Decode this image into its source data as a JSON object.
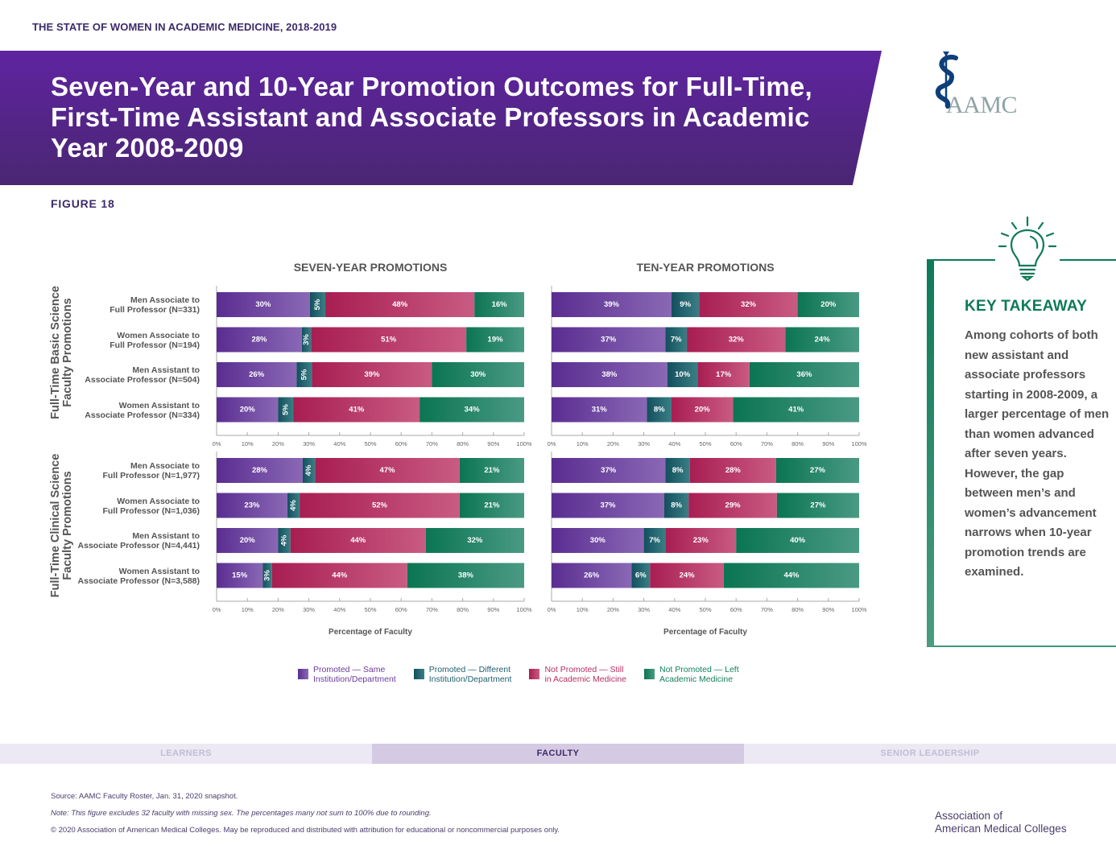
{
  "header": {
    "report_title": "THE STATE OF WOMEN IN ACADEMIC MEDICINE, 2018-2019",
    "banner_title": "Seven-Year and 10-Year Promotion Outcomes for Full-Time, First-Time Assistant and Associate Professors in Academic Year 2008-2009",
    "figure_label": "FIGURE 18",
    "logo_text": "AAMC"
  },
  "colors": {
    "promoted_same": "#6b3a9e",
    "promoted_different": "#1e5f6e",
    "not_promoted_still": "#b82e62",
    "not_promoted_left": "#138060",
    "banner": "#5a2597",
    "accent_green": "#0d7a58"
  },
  "chart_data": {
    "type": "bar",
    "orientation": "horizontal",
    "stacked": true,
    "xlabel": "Percentage of Faculty",
    "xlim": [
      0,
      100
    ],
    "x_ticks": [
      "0%",
      "10%",
      "20%",
      "30%",
      "40%",
      "50%",
      "60%",
      "70%",
      "80%",
      "90%",
      "100%"
    ],
    "legend_position": "bottom",
    "series_names": [
      "Promoted — Same Institution/Department",
      "Promoted — Different Institution/Department",
      "Not Promoted — Still in Academic Medicine",
      "Not Promoted — Left Academic Medicine"
    ],
    "panels": [
      {
        "title": "SEVEN-YEAR PROMOTIONS"
      },
      {
        "title": "TEN-YEAR PROMOTIONS"
      }
    ],
    "groups": [
      {
        "label": "Full-Time Basic Science Faculty Promotions",
        "categories": [
          "Men Associate to|Full Professor (N=331)",
          "Women Associate to|Full Professor (N=194)",
          "Men Assistant to|Associate Professor (N=504)",
          "Women Assistant to|Associate Professor (N=334)"
        ],
        "seven_year": [
          [
            30,
            5,
            48,
            16
          ],
          [
            28,
            3,
            51,
            19
          ],
          [
            26,
            5,
            39,
            30
          ],
          [
            20,
            5,
            41,
            34
          ]
        ],
        "ten_year": [
          [
            39,
            9,
            32,
            20
          ],
          [
            37,
            7,
            32,
            24
          ],
          [
            38,
            10,
            17,
            36
          ],
          [
            31,
            8,
            20,
            41
          ]
        ]
      },
      {
        "label": "Full-Time Clinical Science Faculty Promotions",
        "categories": [
          "Men Associate to|Full Professor (N=1,977)",
          "Women Associate to|Full Professor (N=1,036)",
          "Men Assistant to|Associate Professor (N=4,441)",
          "Women Assistant to|Associate Professor (N=3,588)"
        ],
        "seven_year": [
          [
            28,
            4,
            47,
            21
          ],
          [
            23,
            4,
            52,
            21
          ],
          [
            20,
            4,
            44,
            32
          ],
          [
            15,
            3,
            44,
            38
          ]
        ],
        "ten_year": [
          [
            37,
            8,
            28,
            27
          ],
          [
            37,
            8,
            29,
            27
          ],
          [
            30,
            7,
            23,
            40
          ],
          [
            26,
            6,
            24,
            44
          ]
        ]
      }
    ]
  },
  "legend": [
    {
      "line1": "Promoted — Same",
      "line2": "Institution/Department",
      "color": "#6b3a9e"
    },
    {
      "line1": "Promoted — Different",
      "line2": "Institution/Department",
      "color": "#1e5f6e"
    },
    {
      "line1": "Not Promoted — Still",
      "line2": "in Academic Medicine",
      "color": "#b82e62"
    },
    {
      "line1": "Not Promoted — Left",
      "line2": "Academic Medicine",
      "color": "#138060"
    }
  ],
  "takeaway": {
    "heading": "KEY TAKEAWAY",
    "text": "Among cohorts of both new assistant and associate professors starting in 2008-2009, a larger percentage of men than women advanced after seven years. However, the gap between men’s and women’s advancement narrows when 10-year promotion trends are examined."
  },
  "nav": {
    "tabs": [
      {
        "label": "LEARNERS",
        "active": false
      },
      {
        "label": "FACULTY",
        "active": true
      },
      {
        "label": "SENIOR LEADERSHIP",
        "active": false
      }
    ]
  },
  "footer": {
    "source": "Source: AAMC Faculty Roster, Jan. 31, 2020 snapshot.",
    "note": "Note: This figure excludes 32 faculty with missing sex. The percentages many not sum to 100% due to rounding.",
    "copyright": "© 2020 Association of American Medical Colleges. May be reproduced and distributed with attribution for educational or noncommercial purposes only.",
    "org_line1": "Association of",
    "org_line2": "American Medical Colleges"
  }
}
